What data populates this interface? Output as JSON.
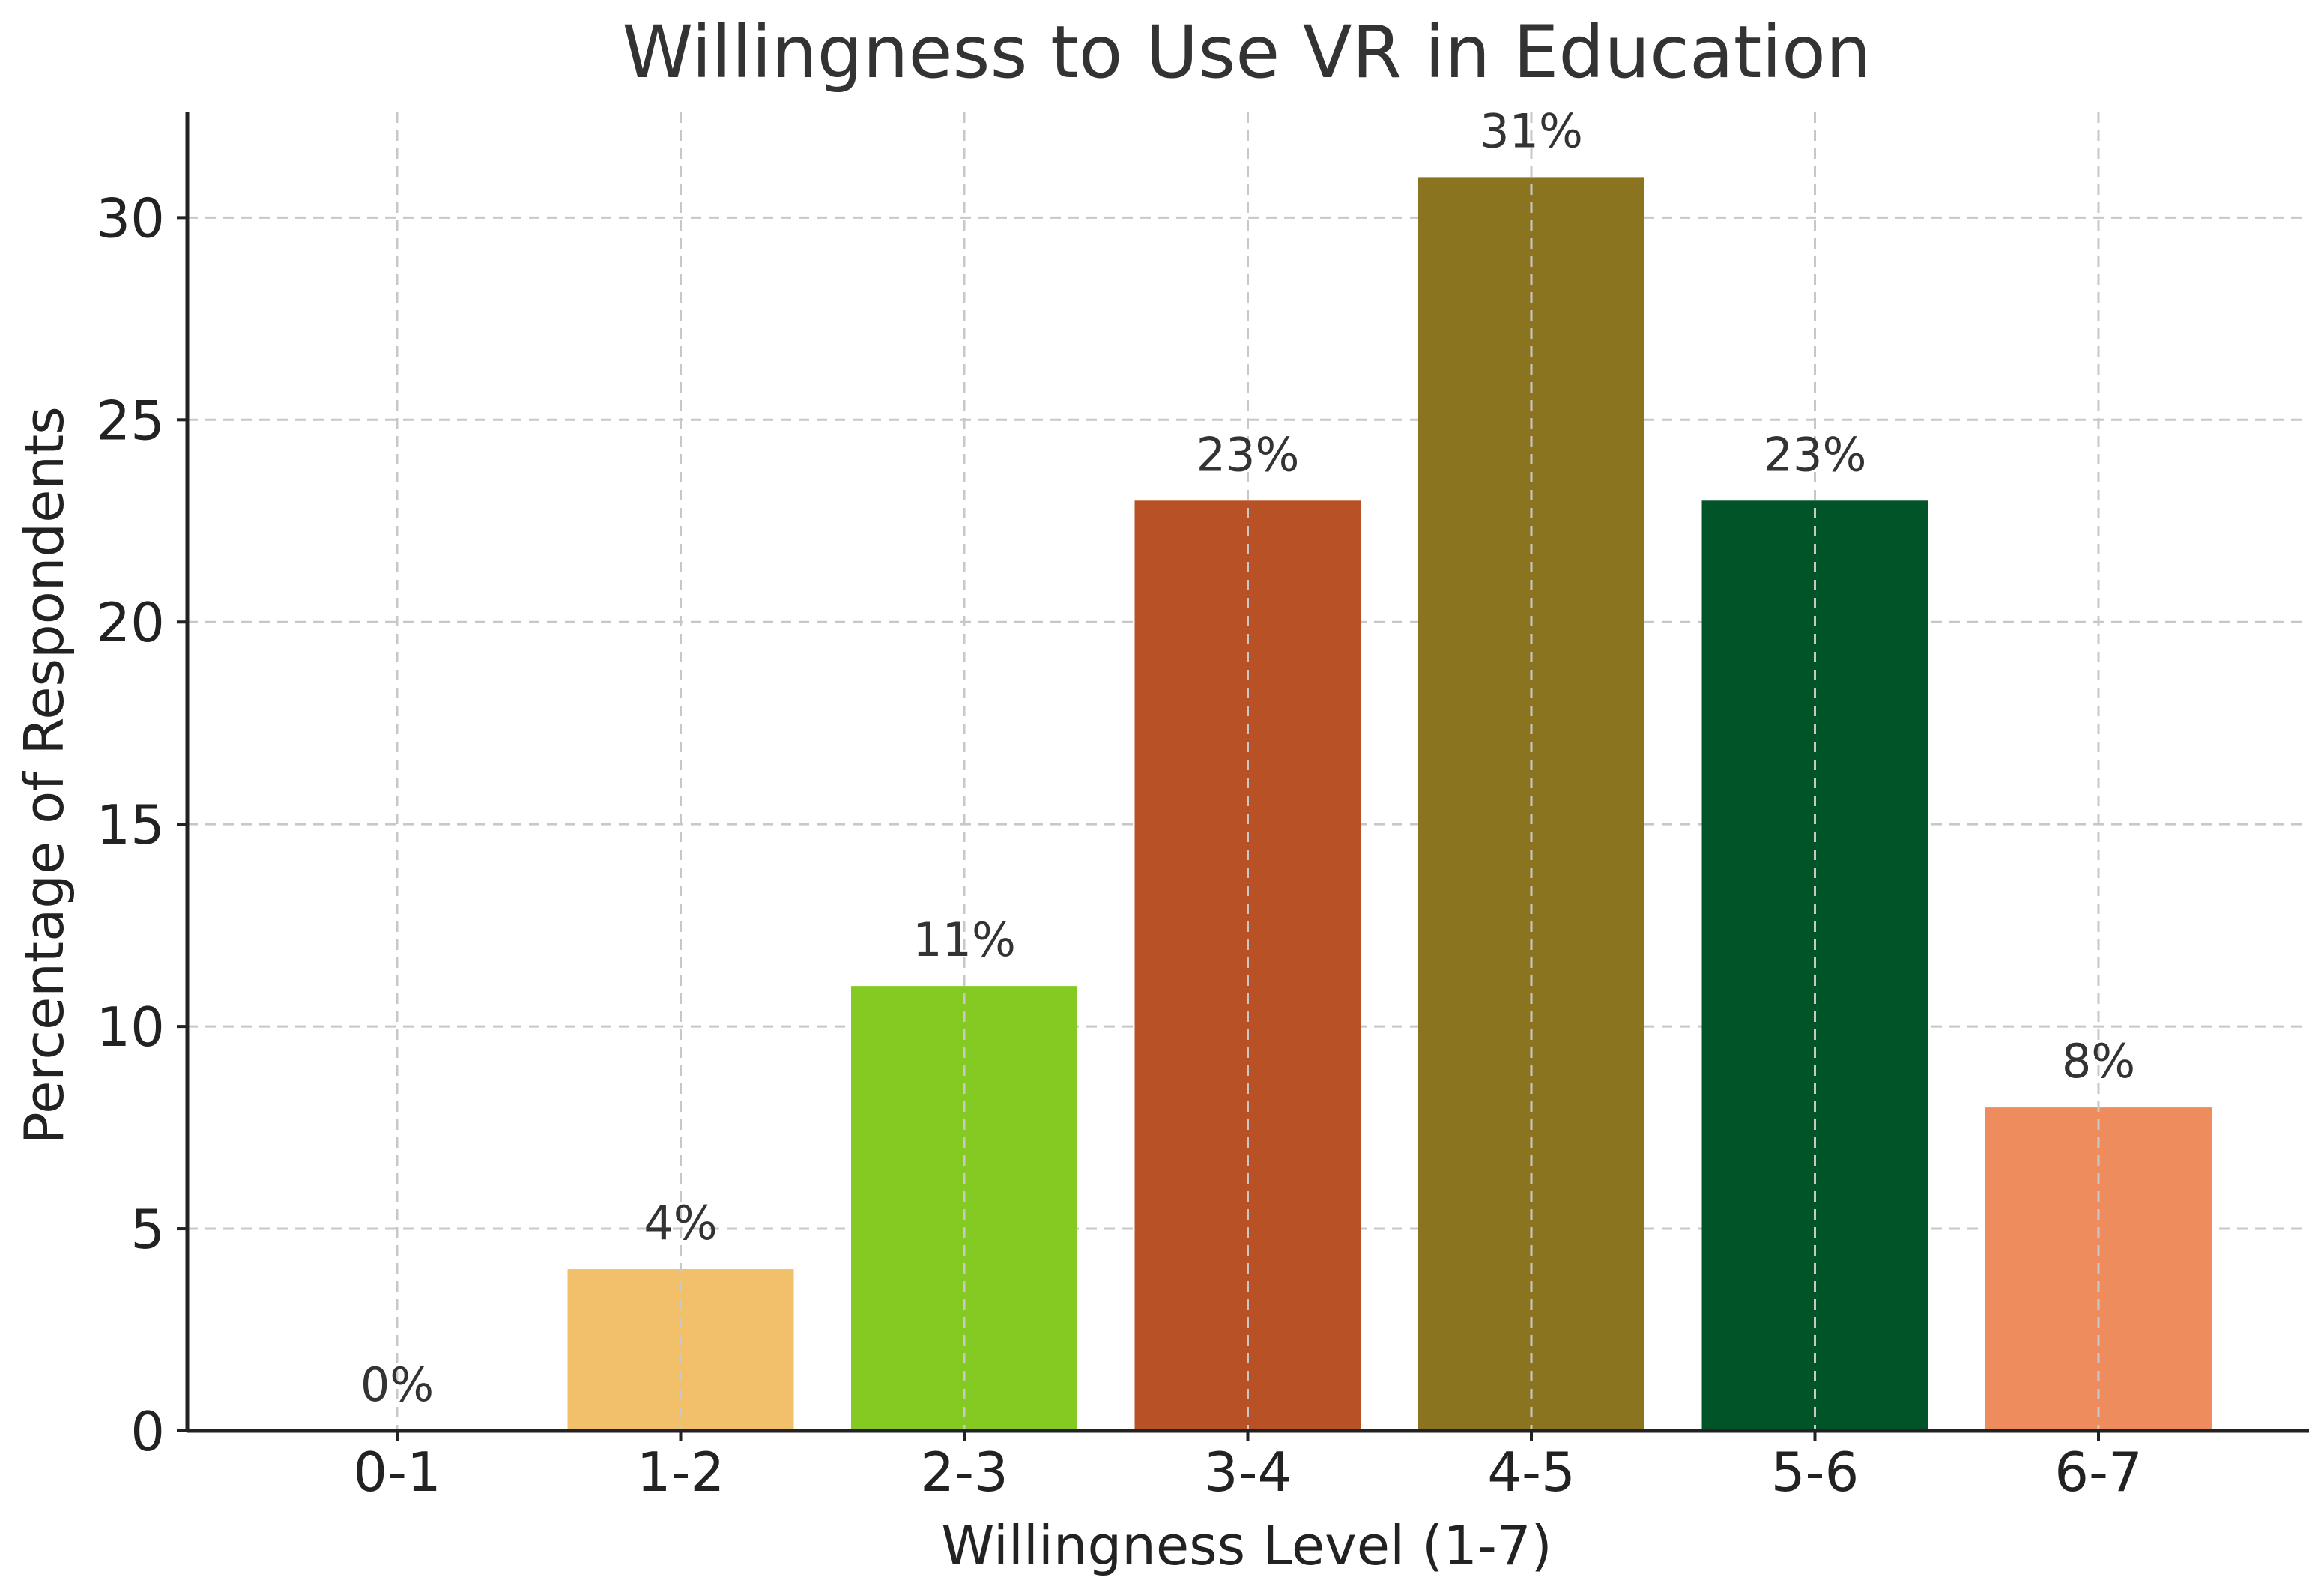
{
  "chart_data": {
    "type": "bar",
    "title": "Willingness to Use VR in Education",
    "xlabel": "Willingness Level (1-7)",
    "ylabel": "Percentage of Respondents",
    "categories": [
      "0-1",
      "1-2",
      "2-3",
      "3-4",
      "4-5",
      "5-6",
      "6-7"
    ],
    "values": [
      0,
      4,
      11,
      23,
      31,
      23,
      8
    ],
    "data_labels": [
      "0%",
      "4%",
      "11%",
      "23%",
      "31%",
      "23%",
      "8%"
    ],
    "colors": [
      "#2E3A8C",
      "#F2C06A",
      "#84CA22",
      "#B85125",
      "#8A7420",
      "#005427",
      "#EE8C5E"
    ],
    "ylim": [
      0,
      32.6
    ],
    "yticks": [
      0,
      5,
      10,
      15,
      20,
      25,
      30
    ],
    "grid": true,
    "legend": "none"
  }
}
